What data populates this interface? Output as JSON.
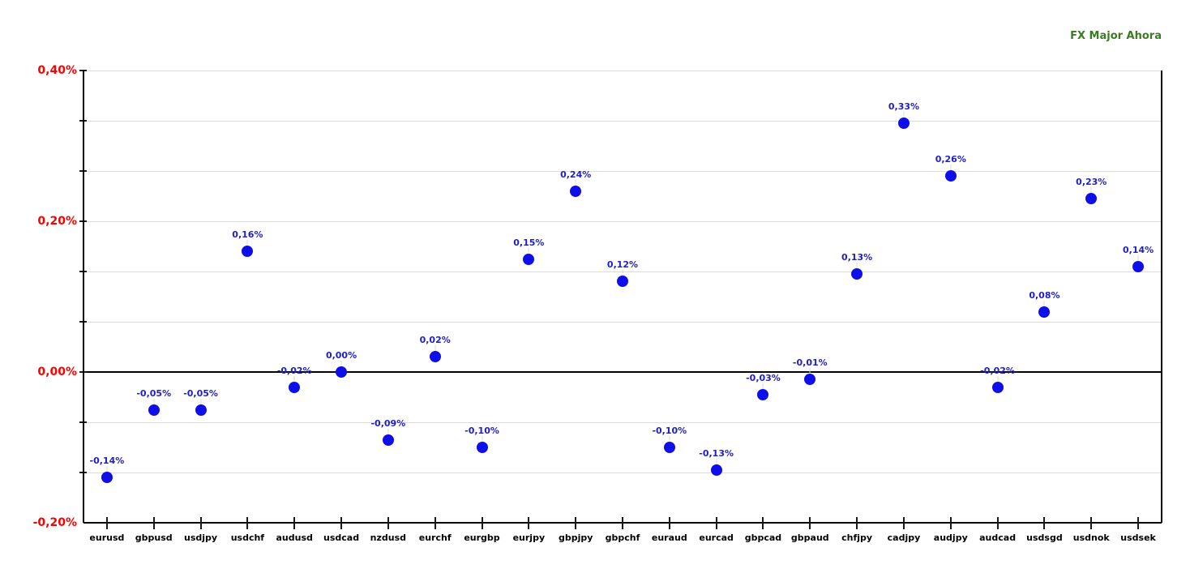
{
  "title": "FX Major Ahora",
  "colors": {
    "title": "#3b7b23",
    "marker": "#0e0ee8",
    "point_label": "#2020c8",
    "y_axis_label": "#ff0000",
    "x_axis_label": "#000000",
    "gridline": "#dcdcdc",
    "axis": "#000000"
  },
  "chart_data": {
    "type": "scatter",
    "title": "FX Major Ahora",
    "xlabel": "",
    "ylabel": "",
    "ylim": [
      -0.2,
      0.4
    ],
    "grid": true,
    "legend": "none",
    "y_tick_labels": [
      {
        "label": "0,40%",
        "value": 0.4
      },
      {
        "label": "0,20%",
        "value": 0.2
      },
      {
        "label": "0,00%",
        "value": 0.0
      },
      {
        "label": "-0,20%",
        "value": -0.2
      }
    ],
    "gridline_step": 0.0667,
    "categories": [
      "eurusd",
      "gbpusd",
      "usdjpy",
      "usdchf",
      "audusd",
      "usdcad",
      "nzdusd",
      "eurchf",
      "eurgbp",
      "eurjpy",
      "gbpjpy",
      "gbpchf",
      "euraud",
      "eurcad",
      "gbpcad",
      "gbpaud",
      "chfjpy",
      "cadjpy",
      "audjpy",
      "audcad",
      "usdsgd",
      "usdnok",
      "usdsek"
    ],
    "points": [
      {
        "pair": "eurusd",
        "value": -0.14,
        "label": "-0,14%"
      },
      {
        "pair": "gbpusd",
        "value": -0.05,
        "label": "-0,05%"
      },
      {
        "pair": "usdjpy",
        "value": -0.05,
        "label": "-0,05%"
      },
      {
        "pair": "usdchf",
        "value": 0.16,
        "label": "0,16%"
      },
      {
        "pair": "audusd",
        "value": -0.02,
        "label": "-0,02%"
      },
      {
        "pair": "usdcad",
        "value": 0.0,
        "label": "0,00%"
      },
      {
        "pair": "nzdusd",
        "value": -0.09,
        "label": "-0,09%"
      },
      {
        "pair": "eurchf",
        "value": 0.02,
        "label": "0,02%"
      },
      {
        "pair": "eurgbp",
        "value": -0.1,
        "label": "-0,10%"
      },
      {
        "pair": "eurjpy",
        "value": 0.15,
        "label": "0,15%"
      },
      {
        "pair": "gbpjpy",
        "value": 0.24,
        "label": "0,24%"
      },
      {
        "pair": "gbpchf",
        "value": 0.12,
        "label": "0,12%"
      },
      {
        "pair": "euraud",
        "value": -0.1,
        "label": "-0,10%"
      },
      {
        "pair": "eurcad",
        "value": -0.13,
        "label": "-0,13%"
      },
      {
        "pair": "gbpcad",
        "value": -0.03,
        "label": "-0,03%"
      },
      {
        "pair": "gbpaud",
        "value": -0.01,
        "label": "-0,01%"
      },
      {
        "pair": "chfjpy",
        "value": 0.13,
        "label": "0,13%"
      },
      {
        "pair": "cadjpy",
        "value": 0.33,
        "label": "0,33%"
      },
      {
        "pair": "audjpy",
        "value": 0.26,
        "label": "0,26%"
      },
      {
        "pair": "audcad",
        "value": -0.02,
        "label": "-0,02%"
      },
      {
        "pair": "usdsgd",
        "value": 0.08,
        "label": "0,08%"
      },
      {
        "pair": "usdnok",
        "value": 0.23,
        "label": "0,23%"
      },
      {
        "pair": "usdsek",
        "value": 0.14,
        "label": "0,14%"
      }
    ]
  }
}
